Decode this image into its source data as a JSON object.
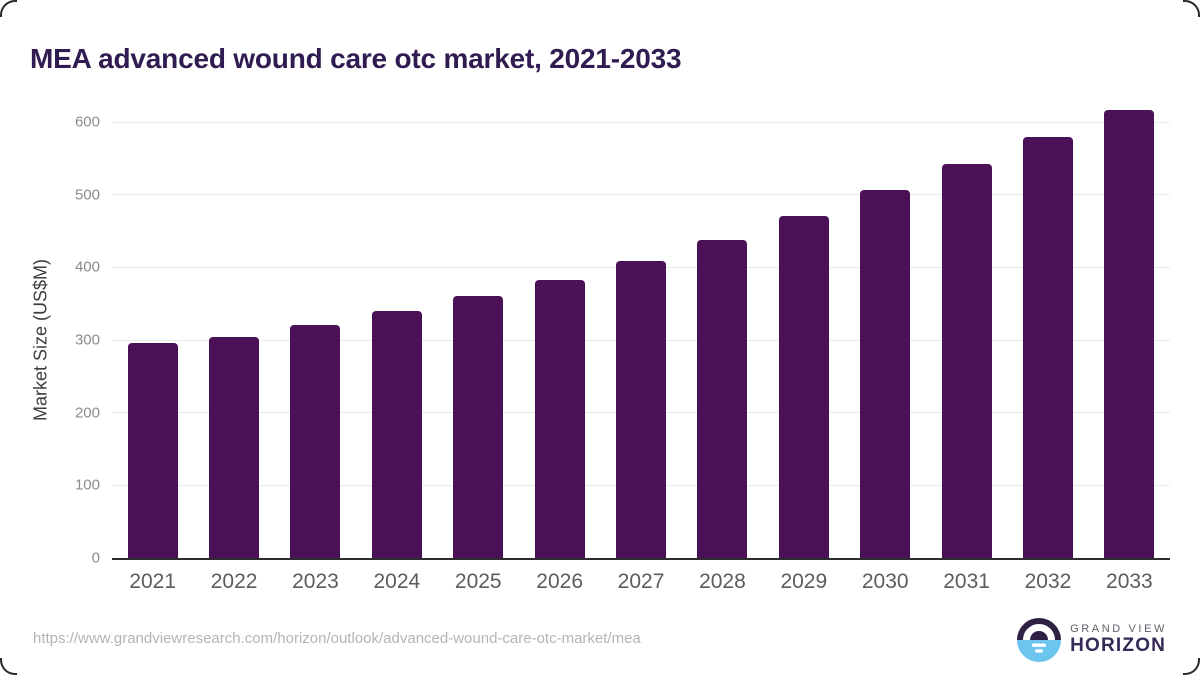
{
  "header": {
    "title": "MEA advanced wound care otc market, 2021-2033"
  },
  "chart_data": {
    "type": "bar",
    "title": "MEA advanced wound care otc market, 2021-2033",
    "categories": [
      "2021",
      "2022",
      "2023",
      "2024",
      "2025",
      "2026",
      "2027",
      "2028",
      "2029",
      "2030",
      "2031",
      "2032",
      "2033"
    ],
    "values": [
      296,
      304,
      321,
      340,
      361,
      383,
      409,
      438,
      471,
      507,
      542,
      579,
      616
    ],
    "xlabel": "",
    "ylabel": "Market Size (US$M)",
    "ylim": [
      0,
      640
    ],
    "yticks": [
      0,
      100,
      200,
      300,
      400,
      500,
      600
    ],
    "grid": true,
    "legend": "none",
    "bar_color": "#4a1157"
  },
  "colors": {
    "title_text": "#301c50",
    "bar": "#4a1157",
    "axis_line": "#2d2d2d",
    "gridline": "#eaeaea",
    "y_tick_text": "#8c8c8c",
    "x_tick_text": "#5c5c5c",
    "url_text": "#b4b4b4",
    "logo_dark": "#2e2144",
    "logo_blue": "#6cc5ef",
    "brand_top_text": "#5f5f68",
    "brand_bottom_text": "#362a57"
  },
  "footer": {
    "source_url": "https://www.grandviewresearch.com/horizon/outlook/advanced-wound-care-otc-market/mea",
    "brand_top": "GRAND VIEW",
    "brand_bottom": "HORIZON"
  }
}
